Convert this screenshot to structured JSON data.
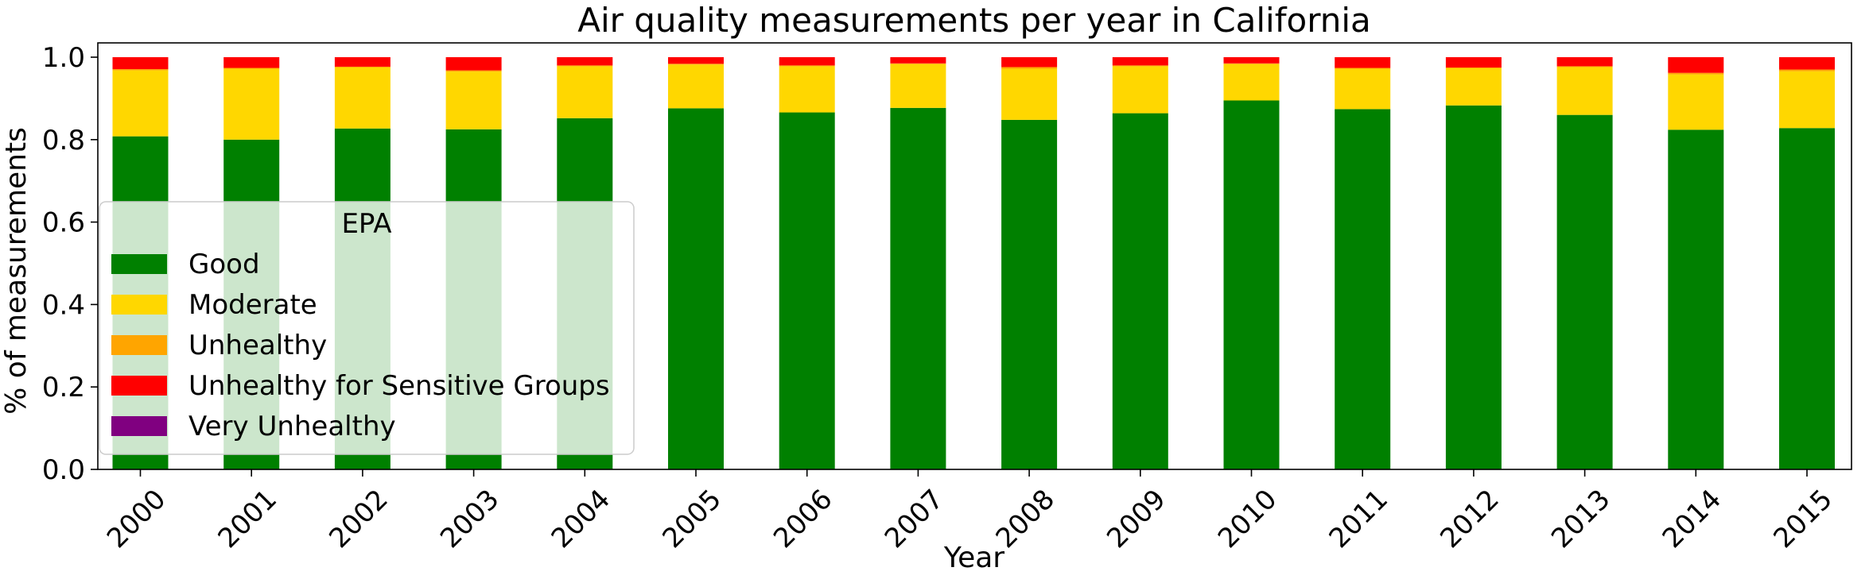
{
  "chart_data": {
    "type": "bar",
    "stacked": true,
    "title": "Air quality measurements per year in California",
    "xlabel": "Year",
    "ylabel": "% of measurements",
    "ylim": [
      0,
      1.0
    ],
    "yticks": [
      "0.0",
      "0.2",
      "0.4",
      "0.6",
      "0.8",
      "1.0"
    ],
    "categories": [
      "2000",
      "2001",
      "2002",
      "2003",
      "2004",
      "2005",
      "2006",
      "2007",
      "2008",
      "2009",
      "2010",
      "2011",
      "2012",
      "2013",
      "2014",
      "2015"
    ],
    "series": [
      {
        "name": "Good",
        "color": "#008000",
        "values": [
          0.808,
          0.8,
          0.827,
          0.825,
          0.852,
          0.876,
          0.866,
          0.877,
          0.848,
          0.864,
          0.895,
          0.874,
          0.883,
          0.86,
          0.824,
          0.828
        ]
      },
      {
        "name": "Moderate",
        "color": "#FFD700",
        "values": [
          0.16,
          0.172,
          0.148,
          0.14,
          0.126,
          0.106,
          0.112,
          0.106,
          0.124,
          0.114,
          0.088,
          0.098,
          0.09,
          0.116,
          0.134,
          0.138
        ]
      },
      {
        "name": "Unhealthy",
        "color": "#FFA500",
        "values": [
          0.003,
          0.002,
          0.002,
          0.003,
          0.002,
          0.002,
          0.002,
          0.002,
          0.004,
          0.002,
          0.002,
          0.002,
          0.002,
          0.002,
          0.004,
          0.004
        ]
      },
      {
        "name": "Unhealthy for Sensitive Groups",
        "color": "#FF0000",
        "values": [
          0.029,
          0.026,
          0.023,
          0.032,
          0.02,
          0.016,
          0.02,
          0.015,
          0.024,
          0.02,
          0.015,
          0.026,
          0.025,
          0.022,
          0.038,
          0.03
        ]
      },
      {
        "name": "Very Unhealthy",
        "color": "#800080",
        "values": [
          0,
          0,
          0,
          0,
          0,
          0,
          0,
          0,
          0,
          0,
          0,
          0,
          0,
          0,
          0,
          0
        ]
      }
    ],
    "legend": {
      "title": "EPA",
      "placement": "lower-left"
    },
    "grid": false
  }
}
